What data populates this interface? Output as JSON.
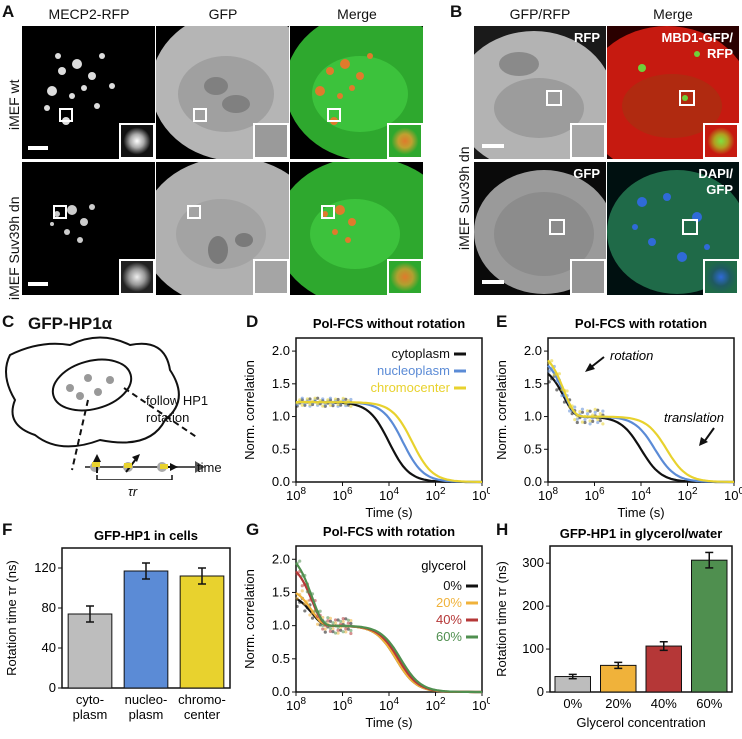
{
  "panels": {
    "A": {
      "label": "A",
      "cols": [
        "MECP2-RFP",
        "GFP",
        "Merge"
      ],
      "rows": [
        "iMEF wt",
        "iMEF Suv39h dn"
      ]
    },
    "B": {
      "label": "B",
      "cols": [
        "GFP/RFP",
        "Merge"
      ],
      "row_label": "iMEF Suv39h dn",
      "overlays": {
        "rfp": "RFP",
        "mbd1": "MBD1-GFP/\nRFP",
        "gfp": "GFP",
        "dapi": "DAPI/\nGFP"
      }
    },
    "C": {
      "label": "C",
      "title": "GFP-HP1α",
      "follow": "follow HP1",
      "rotation": "rotation",
      "tau": "τr",
      "time": "time"
    },
    "D": {
      "label": "D",
      "title": "Pol-FCS without rotation"
    },
    "E": {
      "label": "E",
      "title": "Pol-FCS with rotation",
      "ann_rotation": "rotation",
      "ann_translation": "translation"
    },
    "F": {
      "label": "F",
      "title": "GFP-HP1 in cells",
      "ylabel": "Rotation time τr (ns)"
    },
    "G": {
      "label": "G",
      "title": "Pol-FCS with rotation",
      "legend_title": "glycerol"
    },
    "H": {
      "label": "H",
      "title": "GFP-HP1 in glycerol/water",
      "ylabel": "Rotation time τr (ns)",
      "xlabel": "Glycerol concentration"
    }
  },
  "colors": {
    "black": "#111111",
    "blue": "#5b8bd6",
    "yellow": "#e8d22e",
    "orange": "#f0b23a",
    "red": "#b53737",
    "green": "#4f8f4f",
    "gray": "#bdbdbd"
  },
  "chart_data": [
    {
      "type": "line",
      "panel": "D",
      "title": "Pol-FCS without rotation",
      "xlabel": "Time (s)",
      "ylabel": "Norm. correlation",
      "x_log_range": [
        -8,
        0
      ],
      "ylim": [
        0,
        2.2
      ],
      "xticks": [
        "10^8",
        "10^6",
        "10^4",
        "10^2",
        "10^0"
      ],
      "yticks": [
        "0.0",
        "0.5",
        "1.0",
        "1.5",
        "2.0"
      ],
      "series": [
        {
          "name": "cytoplasm",
          "color": "black",
          "plateau": 1.22,
          "tau_log": -4.0,
          "rot_amp": 0
        },
        {
          "name": "nucleoplasm",
          "color": "blue",
          "plateau": 1.22,
          "tau_log": -3.4,
          "rot_amp": 0
        },
        {
          "name": "chromocenter",
          "color": "yellow",
          "plateau": 1.22,
          "tau_log": -3.0,
          "rot_amp": 0
        }
      ]
    },
    {
      "type": "line",
      "panel": "E",
      "title": "Pol-FCS with rotation",
      "xlabel": "Time (s)",
      "ylabel": "Norm. correlation",
      "x_log_range": [
        -8,
        0
      ],
      "ylim": [
        0,
        2.2
      ],
      "xticks": [
        "10^8",
        "10^6",
        "10^4",
        "10^2",
        "10^0"
      ],
      "yticks": [
        "0.0",
        "0.5",
        "1.0",
        "1.5",
        "2.0"
      ],
      "series": [
        {
          "name": "cytoplasm",
          "color": "black",
          "plateau": 1.0,
          "tau_log": -4.0,
          "rot_amp": 0.8
        },
        {
          "name": "nucleoplasm",
          "color": "blue",
          "plateau": 1.0,
          "tau_log": -3.4,
          "rot_amp": 0.95
        },
        {
          "name": "chromocenter",
          "color": "yellow",
          "plateau": 1.0,
          "tau_log": -2.9,
          "rot_amp": 1.05
        }
      ]
    },
    {
      "type": "bar",
      "panel": "F",
      "title": "GFP-HP1 in cells",
      "ylabel": "Rotation time τr (ns)",
      "ylim": [
        0,
        140
      ],
      "yticks": [
        "0",
        "40",
        "80",
        "120"
      ],
      "categories": [
        "cyto-\nplasm",
        "nucleo-\nplasm",
        "chromo-\ncenter"
      ],
      "values": [
        74,
        117,
        112
      ],
      "errors": [
        8,
        8,
        8
      ],
      "colors": [
        "gray",
        "blue",
        "yellow"
      ]
    },
    {
      "type": "line",
      "panel": "G",
      "title": "Pol-FCS with rotation",
      "xlabel": "Time (s)",
      "ylabel": "Norm. correlation",
      "x_log_range": [
        -8,
        0
      ],
      "ylim": [
        0,
        2.2
      ],
      "xticks": [
        "10^8",
        "10^6",
        "10^4",
        "10^2",
        "10^0"
      ],
      "yticks": [
        "0.0",
        "0.5",
        "1.0",
        "1.5",
        "2.0"
      ],
      "legend_title": "glycerol",
      "series": [
        {
          "name": "0%",
          "color": "black",
          "plateau": 1.0,
          "tau_log": -3.7,
          "rot_amp": 0.5
        },
        {
          "name": "20%",
          "color": "orange",
          "plateau": 1.0,
          "tau_log": -3.7,
          "rot_amp": 0.6
        },
        {
          "name": "40%",
          "color": "red",
          "plateau": 1.0,
          "tau_log": -3.6,
          "rot_amp": 1.0
        },
        {
          "name": "60%",
          "color": "green",
          "plateau": 1.0,
          "tau_log": -3.5,
          "rot_amp": 1.15
        }
      ]
    },
    {
      "type": "bar",
      "panel": "H",
      "title": "GFP-HP1 in glycerol/water",
      "ylabel": "Rotation time τr (ns)",
      "xlabel": "Glycerol concentration",
      "ylim": [
        0,
        340
      ],
      "yticks": [
        "0",
        "100",
        "200",
        "300"
      ],
      "categories": [
        "0%",
        "20%",
        "40%",
        "60%"
      ],
      "values": [
        36,
        62,
        107,
        307
      ],
      "errors": [
        5,
        7,
        10,
        18
      ],
      "colors": [
        "gray",
        "orange",
        "red",
        "green"
      ]
    }
  ]
}
